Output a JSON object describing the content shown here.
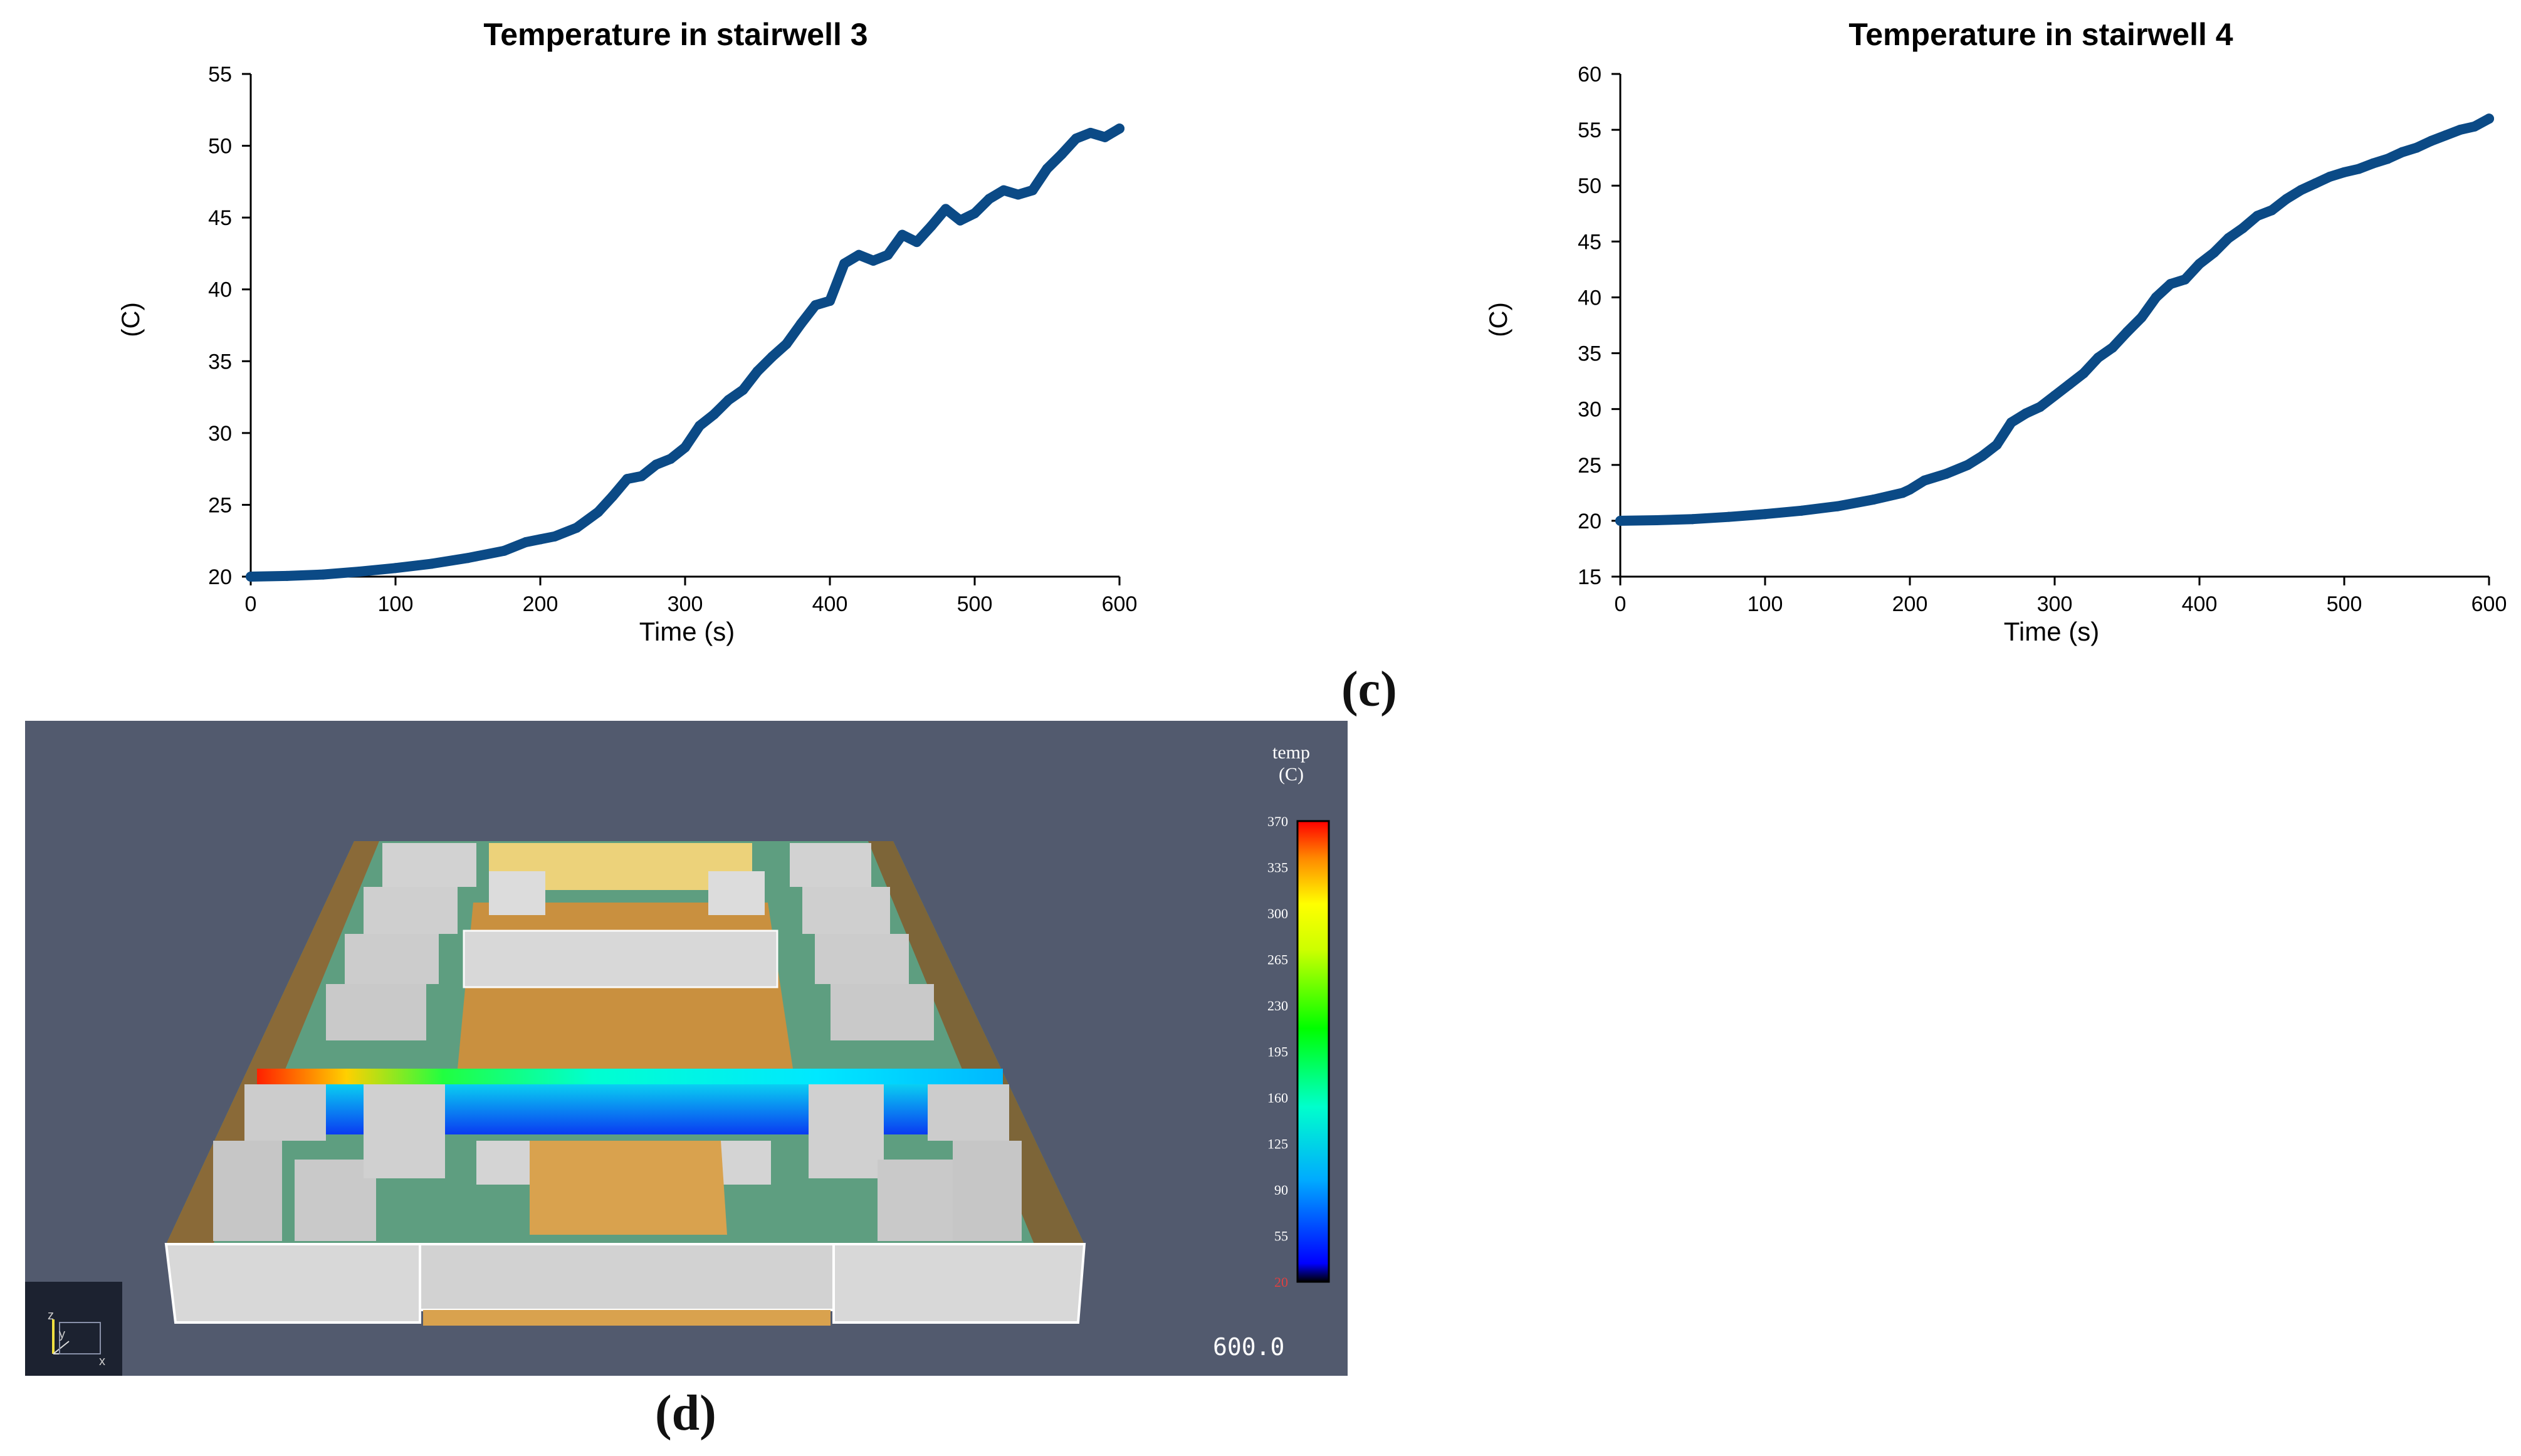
{
  "chart_data": [
    {
      "type": "line",
      "title": "Temperature in stairwell 3",
      "xlabel": "Time (s)",
      "ylabel": "(C)",
      "xlim": [
        0,
        600
      ],
      "ylim": [
        20,
        55
      ],
      "xticks": [
        "0",
        "100",
        "200",
        "300",
        "400",
        "500",
        "600"
      ],
      "yticks": [
        "20",
        "25",
        "30",
        "35",
        "40",
        "45",
        "50",
        "55"
      ],
      "series": [
        {
          "name": "Temperature in stairwell 3",
          "color": "#0b4a86",
          "x": [
            0,
            25,
            50,
            75,
            100,
            125,
            150,
            175,
            190,
            200,
            210,
            225,
            240,
            250,
            260,
            270,
            280,
            290,
            300,
            310,
            320,
            330,
            340,
            350,
            360,
            370,
            380,
            390,
            400,
            410,
            420,
            430,
            440,
            450,
            460,
            470,
            480,
            490,
            500,
            510,
            520,
            530,
            540,
            550,
            560,
            570,
            580,
            590,
            600
          ],
          "y": [
            20.0,
            20.05,
            20.15,
            20.35,
            20.6,
            20.9,
            21.3,
            21.8,
            22.4,
            22.6,
            22.8,
            23.4,
            24.5,
            25.6,
            26.8,
            27.0,
            27.8,
            28.2,
            29.0,
            30.5,
            31.3,
            32.3,
            33.0,
            34.3,
            35.3,
            36.2,
            37.6,
            38.9,
            39.2,
            41.8,
            42.4,
            42.0,
            42.4,
            43.8,
            43.3,
            44.4,
            45.6,
            44.8,
            45.3,
            46.3,
            46.9,
            46.6,
            46.9,
            48.4,
            49.4,
            50.5,
            50.9,
            50.6,
            51.2
          ]
        }
      ]
    },
    {
      "type": "line",
      "title": "Temperature in stairwell 4",
      "xlabel": "Time (s)",
      "ylabel": "(C)",
      "xlim": [
        0,
        600
      ],
      "ylim": [
        15,
        60
      ],
      "xticks": [
        "0",
        "100",
        "200",
        "300",
        "400",
        "500",
        "600"
      ],
      "yticks": [
        "15",
        "20",
        "25",
        "30",
        "35",
        "40",
        "45",
        "50",
        "55",
        "60"
      ],
      "series": [
        {
          "name": "Temperature in stairwell 4",
          "color": "#0b4a86",
          "x": [
            0,
            25,
            50,
            75,
            100,
            125,
            150,
            175,
            195,
            200,
            210,
            225,
            240,
            250,
            260,
            270,
            280,
            290,
            300,
            310,
            320,
            330,
            340,
            350,
            360,
            370,
            380,
            390,
            400,
            410,
            420,
            430,
            440,
            450,
            460,
            470,
            480,
            490,
            500,
            510,
            520,
            530,
            540,
            550,
            560,
            570,
            580,
            590,
            600
          ],
          "y": [
            20.0,
            20.05,
            20.15,
            20.35,
            20.6,
            20.9,
            21.3,
            21.9,
            22.5,
            22.8,
            23.6,
            24.2,
            25.0,
            25.8,
            26.8,
            28.8,
            29.6,
            30.2,
            31.2,
            32.2,
            33.2,
            34.6,
            35.5,
            36.9,
            38.2,
            40.0,
            41.2,
            41.6,
            43.0,
            44.0,
            45.3,
            46.2,
            47.3,
            47.8,
            48.8,
            49.6,
            50.2,
            50.8,
            51.2,
            51.5,
            52.0,
            52.4,
            53.0,
            53.4,
            54.0,
            54.5,
            55.0,
            55.3,
            56.0
          ]
        }
      ]
    }
  ],
  "panel_labels": {
    "c": "(c)",
    "d": "(d)"
  },
  "simulation": {
    "legend_title": "temp",
    "legend_unit": "(C)",
    "legend_ticks": [
      "370",
      "335",
      "300",
      "265",
      "230",
      "195",
      "160",
      "125",
      "90",
      "55",
      "20"
    ],
    "time_readout": "600.0",
    "axis_labels": {
      "z": "z",
      "y": "y",
      "x": "x"
    },
    "colors": {
      "background": "#525a6e",
      "wall": "#d2d2d2",
      "floor_green": "#5e9e80",
      "floor_orange": "#c9903f",
      "floor_yellow": "#ecd27a"
    }
  }
}
